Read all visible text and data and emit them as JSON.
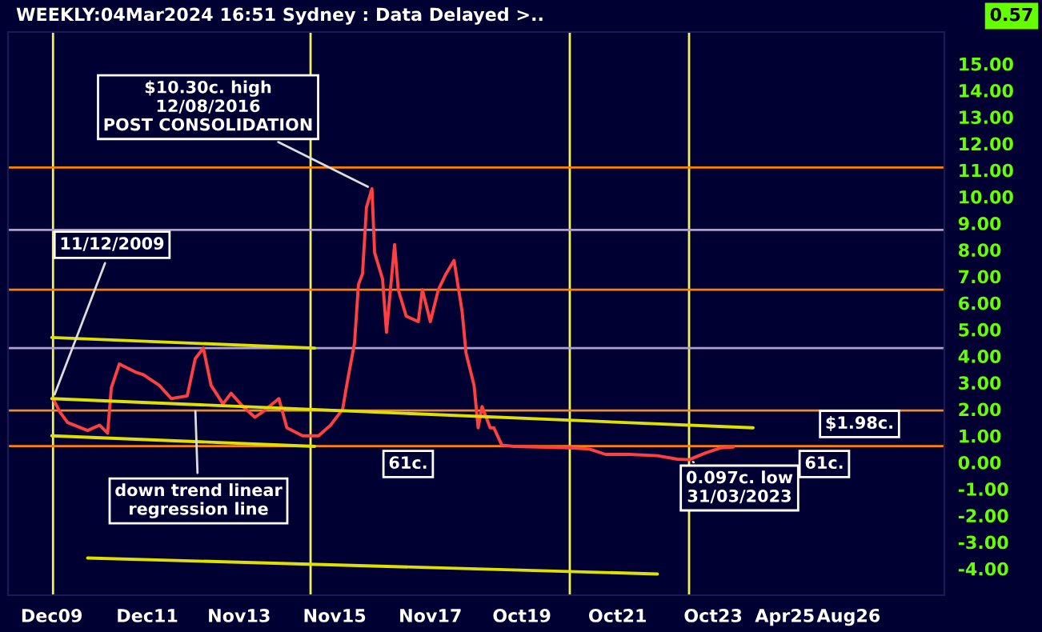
{
  "chart_data": {
    "type": "line",
    "title": "WEEKLY:04Mar2024 16:51 Sydney : Data Delayed >..",
    "x": [
      "2009-12-11",
      "2010-02",
      "2010-04",
      "2010-09",
      "2010-12",
      "2011-02",
      "2011-03",
      "2011-05",
      "2011-09",
      "2011-11",
      "2012-03",
      "2012-06",
      "2012-10",
      "2012-12",
      "2013-02",
      "2013-04",
      "2013-07",
      "2013-09",
      "2013-12",
      "2014-03",
      "2014-05",
      "2014-09",
      "2014-11",
      "2015-03",
      "2015-07",
      "2015-10",
      "2016-01",
      "2016-02",
      "2016-04",
      "2016-05",
      "2016-06",
      "2016-07",
      "2016-08-12",
      "2016-09",
      "2016-11",
      "2016-12",
      "2017-02",
      "2017-03",
      "2017-05",
      "2017-08",
      "2017-09",
      "2017-11",
      "2018-01",
      "2018-03",
      "2018-05",
      "2018-07",
      "2018-08",
      "2018-10",
      "2018-11",
      "2018-12",
      "2019-02",
      "2019-03",
      "2019-05",
      "2019-08",
      "2020-10",
      "2021-03",
      "2021-07",
      "2022-01",
      "2022-08",
      "2023-01",
      "2023-03-31",
      "2023-08",
      "2023-12",
      "2024-03-04"
    ],
    "series": [
      {
        "color": "#ff4040",
        "values": [
          2.4,
          1.9,
          1.5,
          1.2,
          1.4,
          1.1,
          2.8,
          3.7,
          3.4,
          3.3,
          2.9,
          2.4,
          2.5,
          3.9,
          4.3,
          2.9,
          2.2,
          2.6,
          2.1,
          1.7,
          1.9,
          2.4,
          1.3,
          1.0,
          1.0,
          1.4,
          2.0,
          2.9,
          4.5,
          6.7,
          7.1,
          9.6,
          10.3,
          7.9,
          6.9,
          4.9,
          8.2,
          6.5,
          5.5,
          5.3,
          6.5,
          5.3,
          6.5,
          7.1,
          7.6,
          5.7,
          4.1,
          2.9,
          1.3,
          2.1,
          1.3,
          1.3,
          0.65,
          0.6,
          0.55,
          0.5,
          0.3,
          0.3,
          0.25,
          0.12,
          0.1,
          0.35,
          0.55,
          0.58
        ]
      },
      {
        "color": "#e0e000",
        "x": [
          "2009-12",
          "2015-06"
        ],
        "values": [
          4.7,
          4.3
        ]
      },
      {
        "color": "#e0e000",
        "x": [
          "2009-12",
          "2024-08"
        ],
        "values": [
          2.4,
          1.3
        ]
      },
      {
        "color": "#e0e000",
        "x": [
          "2009-12",
          "2015-06"
        ],
        "values": [
          1.0,
          0.6
        ]
      },
      {
        "color": "#e0e000",
        "x": [
          "2010-09",
          "2022-08"
        ],
        "values": [
          -3.6,
          -4.2
        ]
      }
    ],
    "xlim": [
      "2009-01",
      "2028-08"
    ],
    "xticks": [
      {
        "value": "2009-12",
        "label": "Dec09"
      },
      {
        "value": "2011-12",
        "label": "Dec11"
      },
      {
        "value": "2013-11",
        "label": "Nov13"
      },
      {
        "value": "2015-11",
        "label": "Nov15"
      },
      {
        "value": "2017-11",
        "label": "Nov17"
      },
      {
        "value": "2019-10",
        "label": "Oct19"
      },
      {
        "value": "2021-10",
        "label": "Oct21"
      },
      {
        "value": "2023-10",
        "label": "Oct23"
      },
      {
        "value": "2025-04",
        "label": "Apr25"
      },
      {
        "value": "2026-08",
        "label": "Aug26"
      }
    ],
    "ylim": [
      -5,
      16.2
    ],
    "yticks": [
      {
        "value": -4,
        "label": "-4.00"
      },
      {
        "value": -3,
        "label": "-3.00"
      },
      {
        "value": -2,
        "label": "-2.00"
      },
      {
        "value": -1,
        "label": "-1.00"
      },
      {
        "value": 0,
        "label": "0.00"
      },
      {
        "value": 1,
        "label": "1.00"
      },
      {
        "value": 2,
        "label": "2.00"
      },
      {
        "value": 3,
        "label": "3.00"
      },
      {
        "value": 4,
        "label": "4.00"
      },
      {
        "value": 5,
        "label": "5.00"
      },
      {
        "value": 6,
        "label": "6.00"
      },
      {
        "value": 7,
        "label": "7.00"
      },
      {
        "value": 8,
        "label": "8.00"
      },
      {
        "value": 9,
        "label": "9.00"
      },
      {
        "value": 10,
        "label": "10.00"
      },
      {
        "value": 11,
        "label": "11.00"
      },
      {
        "value": 12,
        "label": "12.00"
      },
      {
        "value": 13,
        "label": "13.00"
      },
      {
        "value": 14,
        "label": "14.00"
      },
      {
        "value": 15,
        "label": "15.00"
      }
    ],
    "ref_lines": [
      {
        "axis": "x",
        "value": "2009-12-11",
        "color": "#f0f060"
      },
      {
        "axis": "x",
        "value": "2015-05",
        "color": "#f0f060"
      },
      {
        "axis": "x",
        "value": "2020-10",
        "color": "#f0f060"
      },
      {
        "axis": "x",
        "value": "2023-03-31",
        "color": "#f0f060"
      },
      {
        "axis": "y",
        "value": 11.1,
        "color": "#ff8000"
      },
      {
        "axis": "y",
        "value": 8.75,
        "color": "#b0a0d0"
      },
      {
        "axis": "y",
        "value": 6.5,
        "color": "#ff8000"
      },
      {
        "axis": "y",
        "value": 4.3,
        "color": "#b0a0d0"
      },
      {
        "axis": "y",
        "value": 1.95,
        "color": "#e09040"
      },
      {
        "axis": "y",
        "value": 0.61,
        "color": "#ff8000"
      }
    ],
    "annotations": [
      {
        "text": "$10.30c. high\n12/08/2016\nPOST CONSOLIDATION",
        "x": "2016-08-12",
        "y": 10.3
      },
      {
        "text": "11/12/2009",
        "x": "2009-12-11",
        "y": 2.4
      },
      {
        "text": "down trend linear\nregression line",
        "x": "2012-12",
        "y": 2.1
      },
      "61c.",
      {
        "text": "0.097c. low\n31/03/2023",
        "x": "2023-03-31",
        "y": 0.1
      },
      "61c.",
      "$1.98c.",
      "0.57"
    ],
    "grid": false,
    "legend": false
  }
}
